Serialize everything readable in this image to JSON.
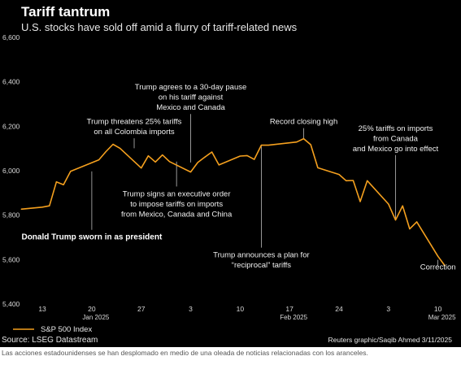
{
  "chart_data": {
    "type": "line",
    "title": "Tariff tantrum",
    "subtitle": "U.S. stocks have sold off amid a flurry of tariff-related news",
    "y_ticks": [
      "5,400",
      "5,600",
      "5,800",
      "6,000",
      "6,200",
      "6,400",
      "6,600"
    ],
    "ylim": [
      5400,
      6600
    ],
    "x_ticks": [
      {
        "label": "13",
        "date": "2025-01-13"
      },
      {
        "label": "20",
        "date": "2025-01-20"
      },
      {
        "label": "27",
        "date": "2025-01-27"
      },
      {
        "label": "3",
        "date": "2025-02-03"
      },
      {
        "label": "10",
        "date": "2025-02-10"
      },
      {
        "label": "17",
        "date": "2025-02-17"
      },
      {
        "label": "24",
        "date": "2025-02-24"
      },
      {
        "label": "3",
        "date": "2025-03-03"
      },
      {
        "label": "10",
        "date": "2025-03-10"
      }
    ],
    "month_labels": [
      {
        "label": "Jan 2025",
        "date": "2025-01-20"
      },
      {
        "label": "Feb 2025",
        "date": "2025-02-17"
      },
      {
        "label": "Mar 2025",
        "date": "2025-03-10"
      }
    ],
    "xlim": [
      "2025-01-10",
      "2025-03-12"
    ],
    "grid": false,
    "legend": "bottom-left",
    "series": [
      {
        "name": "S&P 500 Index",
        "color": "#f5a01e",
        "points": [
          [
            "2025-01-10",
            5827
          ],
          [
            "2025-01-13",
            5836
          ],
          [
            "2025-01-14",
            5842
          ],
          [
            "2025-01-15",
            5950
          ],
          [
            "2025-01-16",
            5937
          ],
          [
            "2025-01-17",
            5997
          ],
          [
            "2025-01-21",
            6049
          ],
          [
            "2025-01-22",
            6086
          ],
          [
            "2025-01-23",
            6119
          ],
          [
            "2025-01-24",
            6101
          ],
          [
            "2025-01-27",
            6012
          ],
          [
            "2025-01-28",
            6067
          ],
          [
            "2025-01-29",
            6039
          ],
          [
            "2025-01-30",
            6071
          ],
          [
            "2025-01-31",
            6041
          ],
          [
            "2025-02-03",
            5994
          ],
          [
            "2025-02-04",
            6037
          ],
          [
            "2025-02-05",
            6061
          ],
          [
            "2025-02-06",
            6084
          ],
          [
            "2025-02-07",
            6026
          ],
          [
            "2025-02-10",
            6066
          ],
          [
            "2025-02-11",
            6068
          ],
          [
            "2025-02-12",
            6051
          ],
          [
            "2025-02-13",
            6115
          ],
          [
            "2025-02-14",
            6115
          ],
          [
            "2025-02-18",
            6129
          ],
          [
            "2025-02-19",
            6144
          ],
          [
            "2025-02-20",
            6117
          ],
          [
            "2025-02-21",
            6013
          ],
          [
            "2025-02-24",
            5983
          ],
          [
            "2025-02-25",
            5955
          ],
          [
            "2025-02-26",
            5956
          ],
          [
            "2025-02-27",
            5861
          ],
          [
            "2025-02-28",
            5955
          ],
          [
            "2025-03-03",
            5850
          ],
          [
            "2025-03-04",
            5778
          ],
          [
            "2025-03-05",
            5842
          ],
          [
            "2025-03-06",
            5738
          ],
          [
            "2025-03-07",
            5770
          ],
          [
            "2025-03-10",
            5615
          ],
          [
            "2025-03-11",
            5572
          ]
        ]
      }
    ],
    "annotations": [
      {
        "lines": [
          "Donald Trump sworn in as president"
        ],
        "date": "2025-01-20",
        "bold": true,
        "label_y": 5690,
        "anchor_y": 5997
      },
      {
        "lines": [
          "Trump threatens 25% tariffs",
          "on all Colombia imports"
        ],
        "date": "2025-01-26",
        "label_y": 6210,
        "anchor_y": 6101
      },
      {
        "lines": [
          "Trump agrees to a 30-day pause",
          "on his tariff against",
          "Mexico and Canada"
        ],
        "date": "2025-02-03",
        "label_y": 6365,
        "anchor_y": 6037
      },
      {
        "lines": [
          "Trump signs an executive order",
          "to impose tariffs on imports",
          "from Mexico, Canada and China"
        ],
        "date": "2025-02-01",
        "label_y": 5885,
        "anchor_y": 6041
      },
      {
        "lines": [
          "Record closing high"
        ],
        "date": "2025-02-19",
        "label_y": 6210,
        "anchor_y": 6144
      },
      {
        "lines": [
          "Trump announces a plan for",
          "“reciprocal” tariffs"
        ],
        "date": "2025-02-13",
        "label_y": 5610,
        "anchor_y": 6115
      },
      {
        "lines": [
          "25% tariffs on imports",
          "from Canada",
          "and Mexico go into effect"
        ],
        "date": "2025-03-04",
        "label_y": 6180,
        "anchor_y": 5778
      },
      {
        "lines": [
          "Correction"
        ],
        "date": "2025-03-10",
        "label_y": 5555,
        "anchor_y": 5572
      }
    ],
    "source": "Source: LSEG Datastream",
    "credit": "Reuters graphic/Saqib Ahmed 3/11/2025"
  },
  "caption": "Las acciones estadounidenses se han desplomado en medio de una oleada de noticias relacionadas con los aranceles."
}
